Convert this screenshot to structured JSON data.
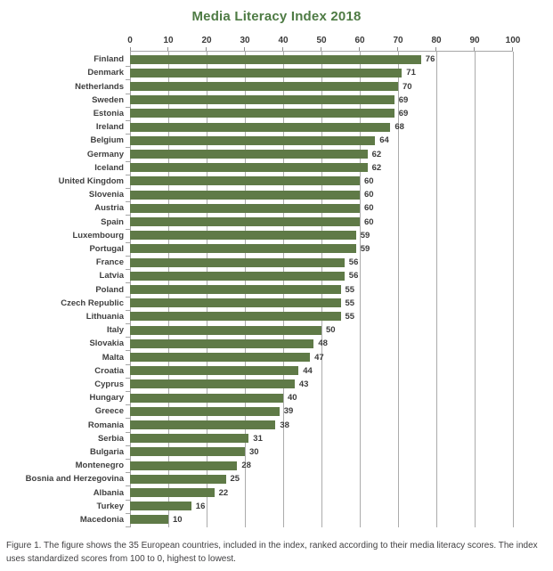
{
  "title": "Media Literacy Index 2018",
  "caption": "Figure 1. The figure shows the 35 European countries, included in the index, ranked according to their media literacy scores. The index uses standardized scores from 100 to 0, highest to lowest.",
  "colors": {
    "title": "#4e7b44",
    "bar": "#5f7a47",
    "grid": "#ababab",
    "axis": "#a6a6a6",
    "text": "#3d3d3d"
  },
  "chart_data": {
    "type": "bar",
    "orientation": "horizontal",
    "title": "Media Literacy Index 2018",
    "xlabel": "",
    "ylabel": "",
    "xlim": [
      0,
      100
    ],
    "xticks": [
      0,
      10,
      20,
      30,
      40,
      50,
      60,
      70,
      80,
      90,
      100
    ],
    "grid": true,
    "value_labels": true,
    "legend": "none",
    "categories": [
      "Finland",
      "Denmark",
      "Netherlands",
      "Sweden",
      "Estonia",
      "Ireland",
      "Belgium",
      "Germany",
      "Iceland",
      "United Kingdom",
      "Slovenia",
      "Austria",
      "Spain",
      "Luxembourg",
      "Portugal",
      "France",
      "Latvia",
      "Poland",
      "Czech Republic",
      "Lithuania",
      "Italy",
      "Slovakia",
      "Malta",
      "Croatia",
      "Cyprus",
      "Hungary",
      "Greece",
      "Romania",
      "Serbia",
      "Bulgaria",
      "Montenegro",
      "Bosnia and Herzegovina",
      "Albania",
      "Turkey",
      "Macedonia"
    ],
    "values": [
      76,
      71,
      70,
      69,
      69,
      68,
      64,
      62,
      62,
      60,
      60,
      60,
      60,
      59,
      59,
      56,
      56,
      55,
      55,
      55,
      50,
      48,
      47,
      44,
      43,
      40,
      39,
      38,
      31,
      30,
      28,
      25,
      22,
      16,
      10
    ]
  }
}
